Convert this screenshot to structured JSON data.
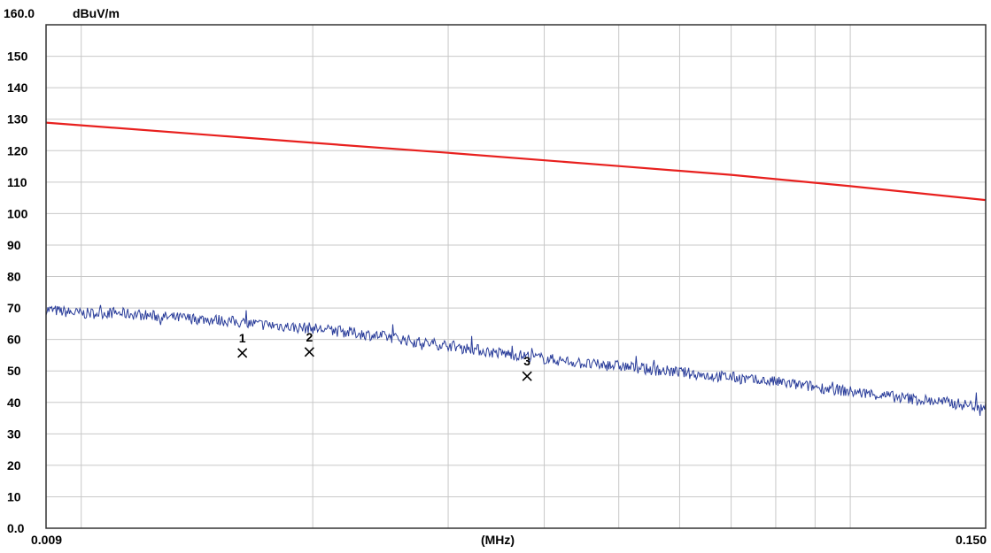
{
  "chart_data": {
    "type": "line",
    "ymax_label": "160.0",
    "unit_label": "dBuV/m",
    "xlabel": "(MHz)",
    "x_scale": "log",
    "xlim": [
      0.009,
      0.15
    ],
    "ylim": [
      0,
      160
    ],
    "x_tick_labels": [
      "0.009",
      "0.150"
    ],
    "y_ticks": [
      0,
      10,
      20,
      30,
      40,
      50,
      60,
      70,
      80,
      90,
      100,
      110,
      120,
      130,
      140,
      150
    ],
    "y_tick_labels": [
      "0.0",
      "10",
      "20",
      "30",
      "40",
      "50",
      "60",
      "70",
      "80",
      "90",
      "100",
      "110",
      "120",
      "130",
      "140",
      "150"
    ],
    "grid": true,
    "series": [
      {
        "color": "#e8201e",
        "x": [
          0.009,
          0.015,
          0.02,
          0.03,
          0.05,
          0.07,
          0.1,
          0.15
        ],
        "y": [
          128.9,
          124.8,
          122.5,
          119.3,
          115.1,
          112.3,
          108.7,
          104.3
        ]
      },
      {
        "color": "#2a3d9a",
        "x": [
          0.009,
          0.0095,
          0.01,
          0.011,
          0.012,
          0.013,
          0.014,
          0.015,
          0.016,
          0.017,
          0.018,
          0.019,
          0.02,
          0.021,
          0.022,
          0.024,
          0.026,
          0.028,
          0.03,
          0.032,
          0.034,
          0.036,
          0.038,
          0.04,
          0.042,
          0.044,
          0.046,
          0.05,
          0.054,
          0.058,
          0.062,
          0.066,
          0.07,
          0.075,
          0.08,
          0.085,
          0.09,
          0.095,
          0.1,
          0.11,
          0.12,
          0.13,
          0.14,
          0.15
        ],
        "y": [
          69.5,
          68.8,
          68.2,
          68.5,
          67.8,
          67.0,
          66.6,
          66.2,
          65.5,
          64.8,
          64.4,
          63.8,
          63.6,
          62.9,
          62.4,
          61.3,
          60.2,
          58.8,
          58.2,
          57.1,
          56.0,
          55.3,
          54.7,
          53.9,
          53.3,
          52.7,
          52.0,
          51.6,
          50.6,
          49.9,
          49.2,
          48.4,
          48.0,
          47.0,
          46.5,
          45.6,
          44.9,
          44.2,
          43.4,
          42.2,
          41.1,
          40.3,
          39.3,
          38.6
        ]
      }
    ],
    "markers": [
      {
        "label": "1",
        "x": 0.0162,
        "y": 55.7
      },
      {
        "label": "2",
        "x": 0.0198,
        "y": 56.0
      },
      {
        "label": "3",
        "x": 0.038,
        "y": 48.3
      }
    ]
  }
}
